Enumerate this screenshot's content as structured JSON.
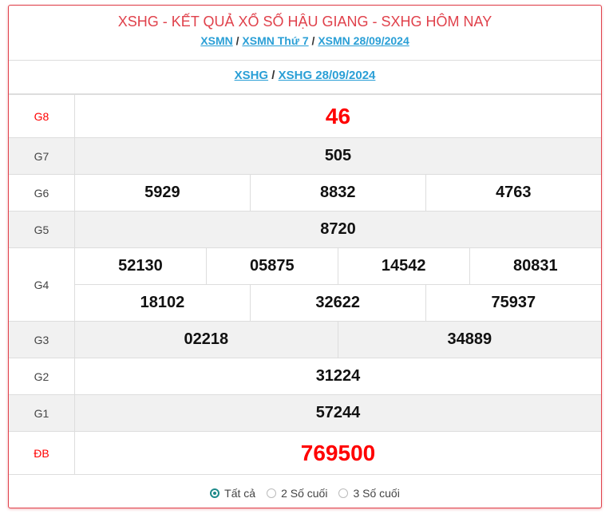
{
  "header": {
    "title": "XSHG - KẾT QUẢ XỔ SỐ HẬU GIANG - SXHG HÔM NAY",
    "breadcrumb": [
      "XSMN",
      "XSMN Thứ 7",
      "XSMN 28/09/2024"
    ],
    "sub_breadcrumb": [
      "XSHG",
      "XSHG 28/09/2024"
    ],
    "separator": "/"
  },
  "prizes": {
    "g8": {
      "label": "G8",
      "values": [
        "46"
      ]
    },
    "g7": {
      "label": "G7",
      "values": [
        "505"
      ]
    },
    "g6": {
      "label": "G6",
      "values": [
        "5929",
        "8832",
        "4763"
      ]
    },
    "g5": {
      "label": "G5",
      "values": [
        "8720"
      ]
    },
    "g4": {
      "label": "G4",
      "values": [
        "52130",
        "05875",
        "14542",
        "80831",
        "18102",
        "32622",
        "75937"
      ]
    },
    "g3": {
      "label": "G3",
      "values": [
        "02218",
        "34889"
      ]
    },
    "g2": {
      "label": "G2",
      "values": [
        "31224"
      ]
    },
    "g1": {
      "label": "G1",
      "values": [
        "57244"
      ]
    },
    "db": {
      "label": "ĐB",
      "values": [
        "769500"
      ]
    }
  },
  "footer": {
    "options": [
      "Tất cả",
      "2 Số cuối",
      "3 Số cuối"
    ],
    "selected": "Tất cả"
  },
  "colors": {
    "accent": "#e0414b",
    "link": "#2a9fd6",
    "highlight": "#ff0000",
    "radio": "#1d8a8a"
  }
}
